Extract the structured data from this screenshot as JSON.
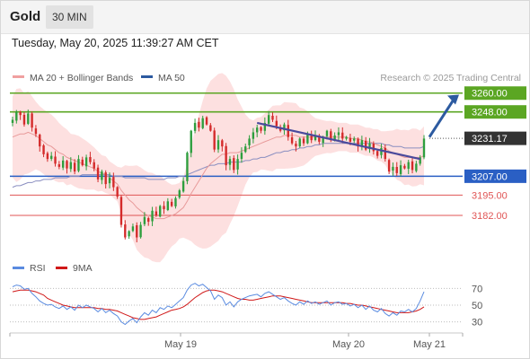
{
  "header": {
    "instrument": "Gold",
    "timeframe": "30 MIN"
  },
  "timestamp": "Tuesday, May 20, 2025 11:39:27 AM CET",
  "colors": {
    "bull": "#2e9e3e",
    "bear": "#d42a2a",
    "bollinger_band": "#fcd6d6",
    "ma20": "#e89a9a",
    "ma50": "#8a8ec0",
    "support": "#2a5fc4",
    "resistance": "#5ba623",
    "level_red": "#e05555",
    "trend_line": "#4a4a9c",
    "arrow": "#2c5aa0",
    "rsi": "#5a8be0",
    "rsi_ma": "#d01818"
  },
  "chart_data": [
    {
      "type": "candlestick",
      "legend": [
        {
          "name": "MA 20 + Bollinger Bands",
          "color": "#f0a0a0"
        },
        {
          "name": "MA 50",
          "color": "#2c5aa0"
        }
      ],
      "credit": "Research © 2025 Trading Central",
      "ylim": [
        3158,
        3265
      ],
      "x_ticks": [
        "May 19",
        "May 20",
        "May 21"
      ],
      "levels": [
        {
          "value": 3260.0,
          "label": "3260.00",
          "kind": "resistance"
        },
        {
          "value": 3248.0,
          "label": "3248.00",
          "kind": "resistance"
        },
        {
          "value": 3231.17,
          "label": "3231.17",
          "kind": "last"
        },
        {
          "value": 3207.0,
          "label": "3207.00",
          "kind": "support"
        },
        {
          "value": 3195.0,
          "label": "3195.00",
          "kind": "minor"
        },
        {
          "value": 3182.0,
          "label": "3182.00",
          "kind": "minor"
        }
      ],
      "closes": [
        3243,
        3248,
        3246,
        3240,
        3247,
        3238,
        3234,
        3226,
        3221,
        3218,
        3220,
        3215,
        3213,
        3217,
        3212,
        3216,
        3210,
        3218,
        3214,
        3219,
        3216,
        3212,
        3205,
        3210,
        3202,
        3206,
        3200,
        3194,
        3176,
        3168,
        3172,
        3175,
        3168,
        3176,
        3181,
        3178,
        3185,
        3182,
        3188,
        3186,
        3191,
        3188,
        3193,
        3198,
        3204,
        3222,
        3236,
        3241,
        3238,
        3244,
        3240,
        3236,
        3224,
        3230,
        3226,
        3214,
        3218,
        3211,
        3218,
        3222,
        3226,
        3231,
        3235,
        3238,
        3236,
        3241,
        3246,
        3243,
        3239,
        3236,
        3240,
        3232,
        3228,
        3226,
        3231,
        3228,
        3234,
        3230,
        3233,
        3229,
        3232,
        3236,
        3230,
        3233,
        3235,
        3231,
        3232,
        3229,
        3231,
        3226,
        3230,
        3224,
        3228,
        3223,
        3220,
        3225,
        3218,
        3210,
        3213,
        3209,
        3214,
        3212,
        3216,
        3211,
        3215,
        3219,
        3231
      ],
      "ma20": [
        3232,
        3233,
        3234,
        3234,
        3235,
        3234,
        3233,
        3231,
        3229,
        3227,
        3226,
        3224,
        3222,
        3221,
        3219,
        3218,
        3217,
        3216,
        3215,
        3214,
        3213,
        3212,
        3210,
        3209,
        3208,
        3206,
        3204,
        3202,
        3198,
        3195,
        3192,
        3190,
        3187,
        3185,
        3183,
        3182,
        3181,
        3180,
        3180,
        3180,
        3181,
        3182,
        3183,
        3185,
        3187,
        3191,
        3196,
        3200,
        3204,
        3208,
        3212,
        3215,
        3217,
        3219,
        3221,
        3221,
        3222,
        3222,
        3222,
        3223,
        3224,
        3225,
        3226,
        3227,
        3228,
        3229,
        3230,
        3231,
        3232,
        3232,
        3233,
        3233,
        3233,
        3233,
        3232,
        3232,
        3232,
        3232,
        3232,
        3232,
        3232,
        3232,
        3232,
        3232,
        3232,
        3232,
        3232,
        3231,
        3231,
        3231,
        3230,
        3229,
        3229,
        3228,
        3227,
        3226,
        3225,
        3223,
        3222,
        3221,
        3220,
        3219,
        3219,
        3219,
        3219,
        3219,
        3220
      ],
      "ma50": [
        3200,
        3201,
        3201,
        3202,
        3203,
        3203,
        3204,
        3204,
        3205,
        3205,
        3205,
        3206,
        3206,
        3206,
        3206,
        3207,
        3207,
        3207,
        3208,
        3208,
        3208,
        3208,
        3208,
        3208,
        3208,
        3208,
        3207,
        3207,
        3207,
        3206,
        3206,
        3206,
        3206,
        3206,
        3206,
        3205,
        3205,
        3205,
        3205,
        3205,
        3206,
        3206,
        3206,
        3207,
        3207,
        3208,
        3209,
        3210,
        3211,
        3212,
        3213,
        3214,
        3214,
        3215,
        3215,
        3215,
        3216,
        3216,
        3216,
        3216,
        3217,
        3217,
        3218,
        3218,
        3219,
        3219,
        3220,
        3221,
        3222,
        3222,
        3223,
        3223,
        3224,
        3224,
        3225,
        3225,
        3226,
        3226,
        3227,
        3227,
        3228,
        3228,
        3228,
        3228,
        3228,
        3228,
        3228,
        3228,
        3228,
        3228,
        3228,
        3228,
        3228,
        3228,
        3228,
        3228,
        3227,
        3227,
        3226,
        3226,
        3226,
        3225,
        3225,
        3225,
        3225,
        3225,
        3226
      ]
    },
    {
      "type": "line",
      "title": "RSI",
      "legend": [
        {
          "name": "RSI",
          "color": "#5a8be0"
        },
        {
          "name": "9MA",
          "color": "#d01818"
        }
      ],
      "ylim": [
        20,
        80
      ],
      "y_ticks": [
        70,
        50,
        30
      ],
      "rsi": [
        72,
        74,
        73,
        69,
        70,
        64,
        60,
        55,
        52,
        50,
        51,
        48,
        46,
        49,
        45,
        48,
        44,
        50,
        47,
        50,
        48,
        46,
        42,
        46,
        41,
        44,
        40,
        37,
        30,
        27,
        31,
        34,
        29,
        36,
        41,
        38,
        44,
        41,
        47,
        45,
        49,
        47,
        51,
        55,
        59,
        68,
        74,
        76,
        73,
        75,
        71,
        67,
        57,
        62,
        59,
        50,
        54,
        48,
        54,
        57,
        59,
        61,
        62,
        63,
        60,
        64,
        66,
        63,
        60,
        57,
        59,
        55,
        52,
        50,
        54,
        51,
        55,
        52,
        54,
        51,
        53,
        55,
        50,
        53,
        54,
        51,
        52,
        49,
        51,
        47,
        50,
        45,
        49,
        44,
        42,
        46,
        40,
        37,
        41,
        38,
        43,
        42,
        45,
        42,
        46,
        55,
        66
      ],
      "ma9": [
        66,
        67,
        68,
        68,
        68,
        67,
        66,
        64,
        62,
        58,
        56,
        54,
        52,
        50,
        49,
        48,
        47,
        47,
        47,
        47,
        47,
        47,
        46,
        46,
        45,
        45,
        44,
        43,
        41,
        39,
        37,
        35,
        34,
        33,
        33,
        34,
        35,
        36,
        38,
        40,
        42,
        44,
        45,
        46,
        48,
        51,
        55,
        59,
        62,
        65,
        67,
        68,
        68,
        67,
        66,
        64,
        62,
        60,
        58,
        57,
        57,
        56,
        56,
        57,
        58,
        59,
        60,
        61,
        61,
        61,
        60,
        59,
        58,
        57,
        56,
        55,
        54,
        53,
        53,
        53,
        53,
        53,
        53,
        53,
        53,
        53,
        52,
        52,
        51,
        50,
        50,
        49,
        48,
        47,
        46,
        45,
        44,
        43,
        42,
        41,
        41,
        41,
        41,
        42,
        43,
        45,
        48
      ]
    }
  ]
}
